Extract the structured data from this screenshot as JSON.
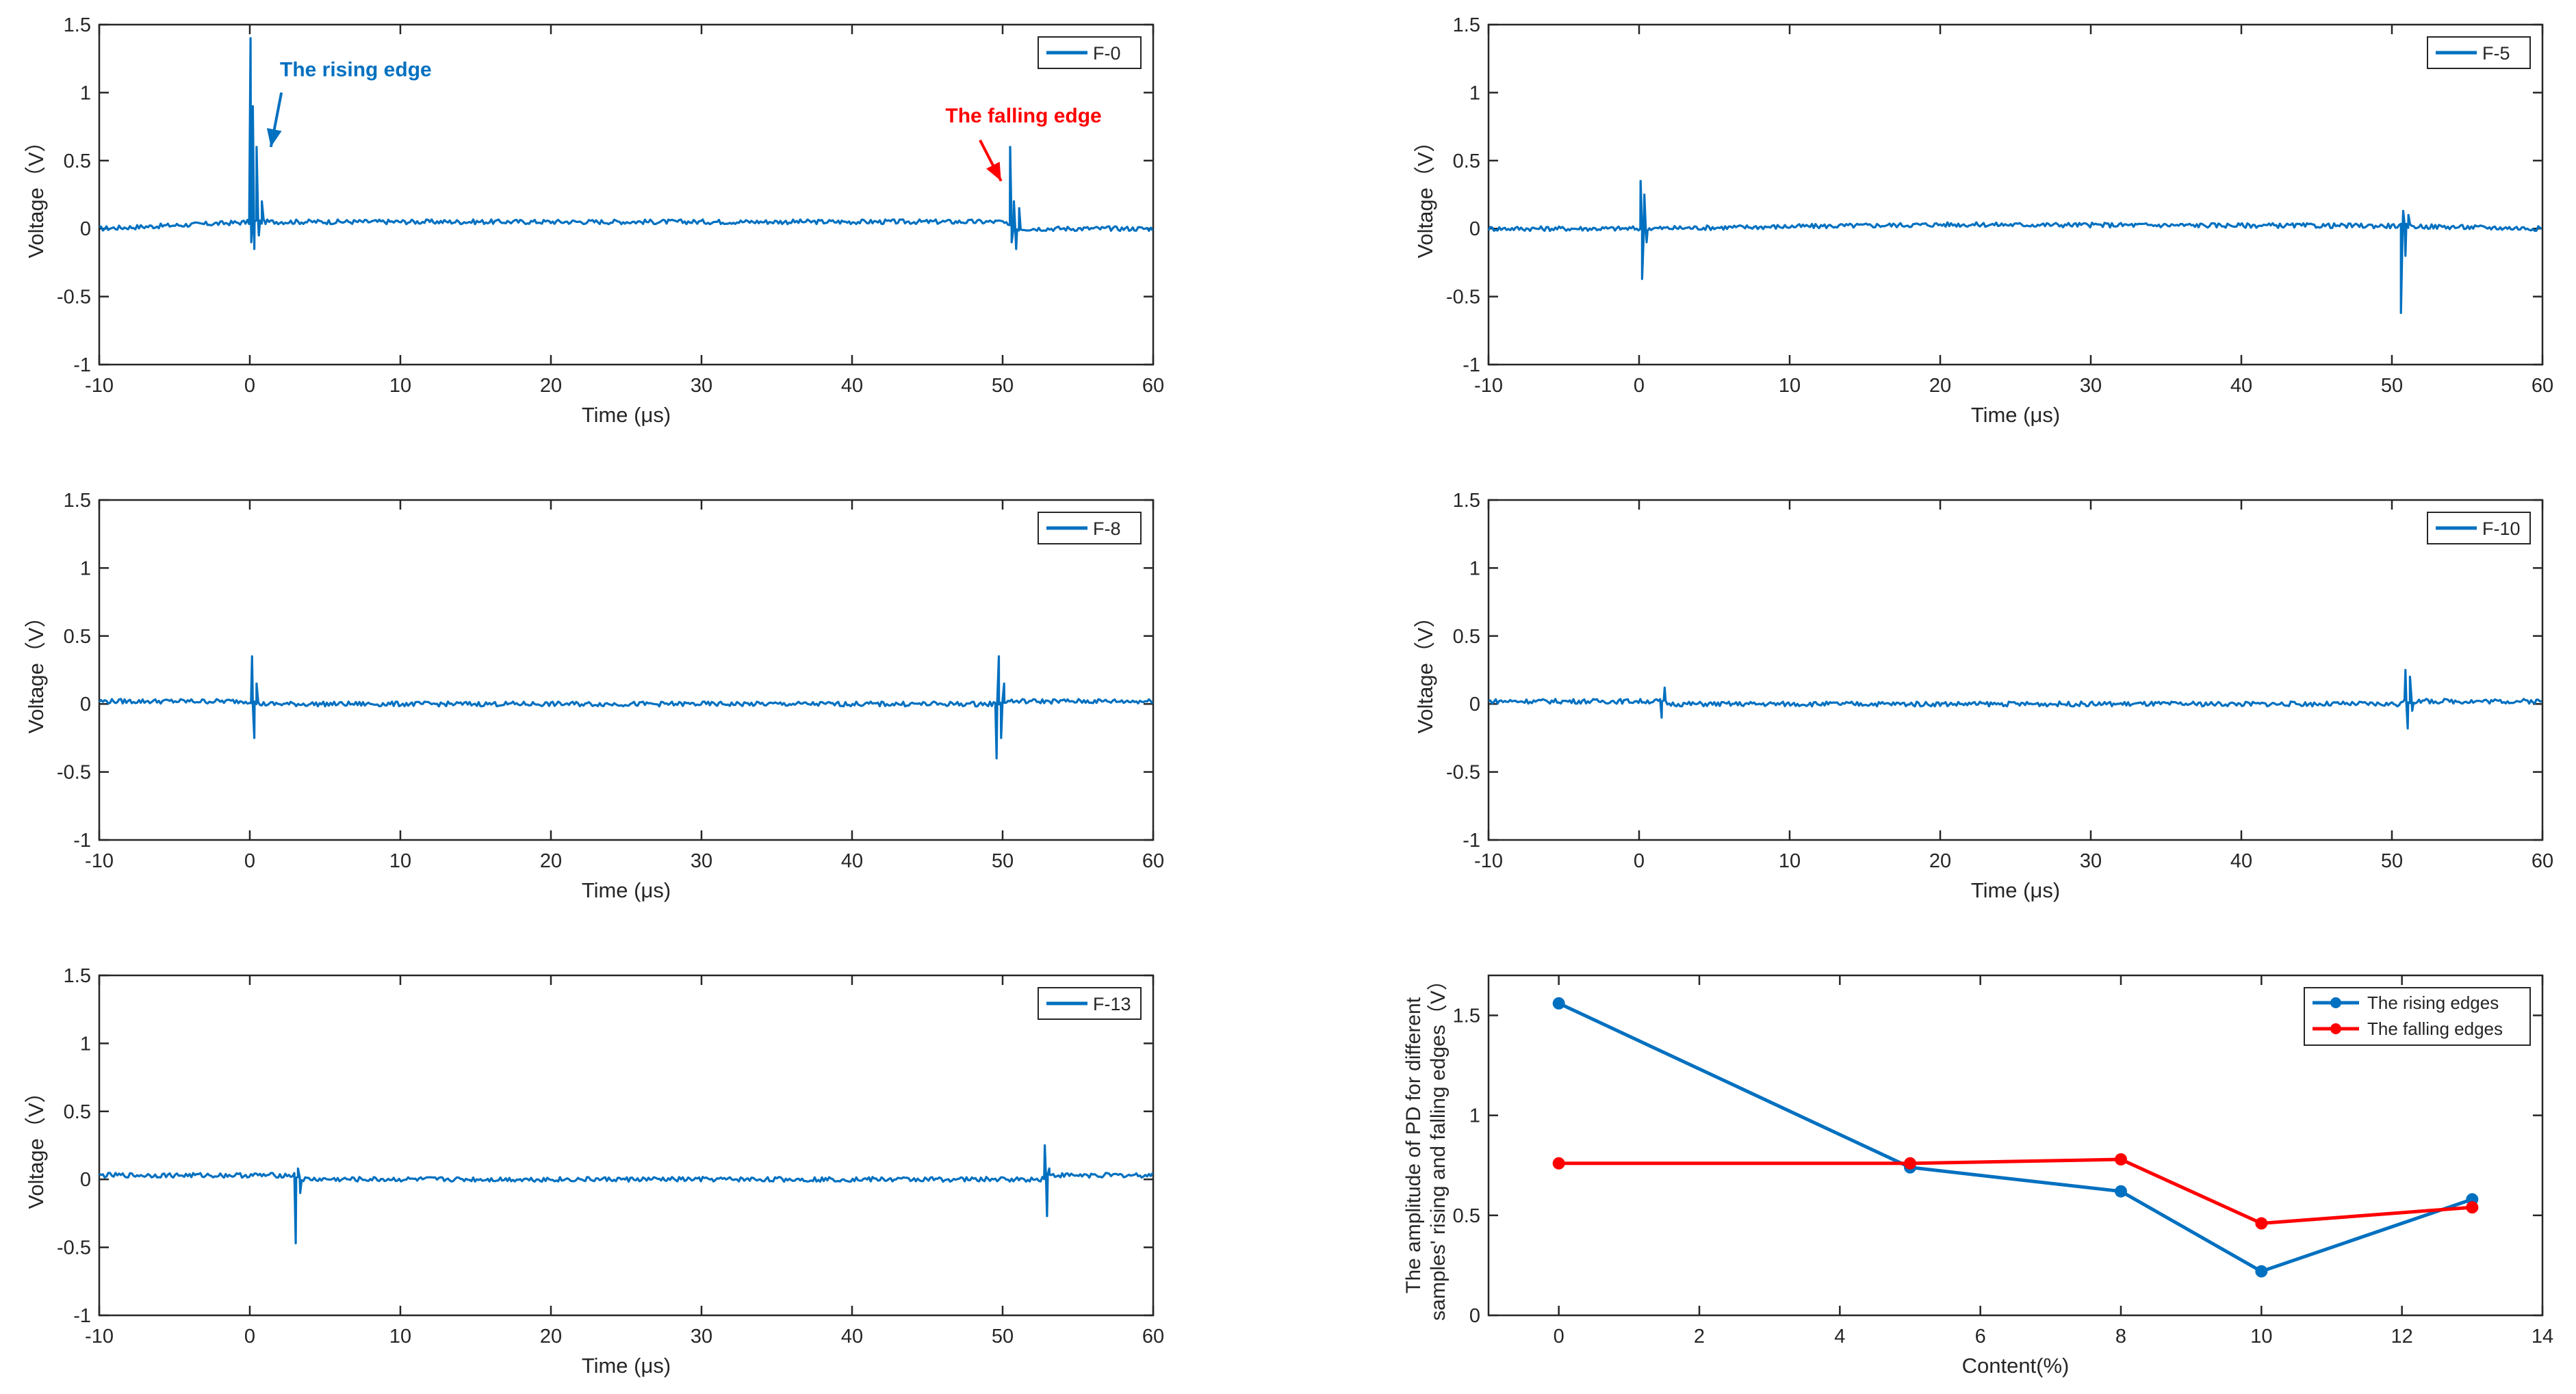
{
  "waveforms": [
    {
      "legend": "F-0",
      "xlabel": "Time (μs)",
      "ylabel": "Voltage（V）",
      "xlim": [
        -10,
        60
      ],
      "ylim": [
        -1,
        1.5
      ],
      "xticks": [
        -10,
        0,
        10,
        20,
        30,
        40,
        50,
        60
      ],
      "yticks": [
        -1,
        -0.5,
        0,
        0.5,
        1,
        1.5
      ],
      "baseline_segments": [
        [
          -10,
          0.0
        ],
        [
          0.5,
          0.05
        ],
        [
          50,
          0.05
        ],
        [
          50.6,
          0.0
        ],
        [
          60,
          0.0
        ]
      ],
      "spikes": [
        [
          0.05,
          1.4
        ],
        [
          0.1,
          -0.1
        ],
        [
          0.2,
          0.9
        ],
        [
          0.3,
          -0.15
        ],
        [
          0.45,
          0.6
        ],
        [
          0.6,
          -0.05
        ],
        [
          0.8,
          0.2
        ],
        [
          1.0,
          0.05
        ],
        [
          50.5,
          0.6
        ],
        [
          50.6,
          -0.1
        ],
        [
          50.75,
          0.2
        ],
        [
          50.9,
          -0.15
        ],
        [
          51.1,
          0.15
        ]
      ],
      "annotations": [
        {
          "text": "The rising edge",
          "color": "#0070c0",
          "x": 2,
          "y": 1.12,
          "arrow_from": [
            2.1,
            1.0
          ],
          "arrow_to": [
            1.4,
            0.6
          ]
        },
        {
          "text": "The falling edge",
          "color": "#ff0000",
          "x": 46.2,
          "y": 0.78,
          "arrow_from": [
            48.5,
            0.65
          ],
          "arrow_to": [
            49.9,
            0.35
          ]
        }
      ]
    },
    {
      "legend": "F-5",
      "xlabel": "Time (μs)",
      "ylabel": "Voltage（V）",
      "xlim": [
        -10,
        60
      ],
      "ylim": [
        -1,
        1.5
      ],
      "xticks": [
        -10,
        0,
        10,
        20,
        30,
        40,
        50,
        60
      ],
      "yticks": [
        -1,
        -0.5,
        0,
        0.5,
        1,
        1.5
      ],
      "baseline_segments": [
        [
          -10,
          0.0
        ],
        [
          0,
          0.0
        ],
        [
          20,
          0.03
        ],
        [
          50,
          0.02
        ],
        [
          60,
          0.0
        ]
      ],
      "spikes": [
        [
          0.1,
          0.35
        ],
        [
          0.2,
          -0.37
        ],
        [
          0.35,
          0.25
        ],
        [
          0.5,
          -0.1
        ],
        [
          50.6,
          -0.62
        ],
        [
          50.75,
          0.13
        ],
        [
          50.9,
          -0.2
        ],
        [
          51.1,
          0.1
        ]
      ],
      "annotations": []
    },
    {
      "legend": "F-8",
      "xlabel": "Time (μs)",
      "ylabel": "Voltage（V）",
      "xlim": [
        -10,
        60
      ],
      "ylim": [
        -1,
        1.5
      ],
      "xticks": [
        -10,
        0,
        10,
        20,
        30,
        40,
        50,
        60
      ],
      "yticks": [
        -1,
        -0.5,
        0,
        0.5,
        1,
        1.5
      ],
      "baseline_segments": [
        [
          -10,
          0.02
        ],
        [
          0,
          0.02
        ],
        [
          0.6,
          0.0
        ],
        [
          49.5,
          0.0
        ],
        [
          50,
          0.02
        ],
        [
          60,
          0.02
        ]
      ],
      "spikes": [
        [
          0.15,
          0.35
        ],
        [
          0.3,
          -0.25
        ],
        [
          0.45,
          0.15
        ],
        [
          49.6,
          -0.4
        ],
        [
          49.75,
          0.35
        ],
        [
          49.9,
          -0.25
        ],
        [
          50.1,
          0.15
        ]
      ],
      "annotations": []
    },
    {
      "legend": "F-10",
      "xlabel": "Time (μs)",
      "ylabel": "Voltage（V）",
      "xlim": [
        -10,
        60
      ],
      "ylim": [
        -1,
        1.5
      ],
      "xticks": [
        -10,
        0,
        10,
        20,
        30,
        40,
        50,
        60
      ],
      "yticks": [
        -1,
        -0.5,
        0,
        0.5,
        1,
        1.5
      ],
      "baseline_segments": [
        [
          -10,
          0.02
        ],
        [
          1.5,
          0.02
        ],
        [
          2,
          0.0
        ],
        [
          50.5,
          0.0
        ],
        [
          51,
          0.02
        ],
        [
          60,
          0.02
        ]
      ],
      "spikes": [
        [
          1.5,
          -0.1
        ],
        [
          1.7,
          0.12
        ],
        [
          50.9,
          0.25
        ],
        [
          51.05,
          -0.18
        ],
        [
          51.2,
          0.2
        ],
        [
          51.35,
          -0.05
        ]
      ],
      "annotations": []
    },
    {
      "legend": "F-13",
      "xlabel": "Time (μs)",
      "ylabel": "Voltage（V）",
      "xlim": [
        -10,
        60
      ],
      "ylim": [
        -1,
        1.5
      ],
      "xticks": [
        -10,
        0,
        10,
        20,
        30,
        40,
        50,
        60
      ],
      "yticks": [
        -1,
        -0.5,
        0,
        0.5,
        1,
        1.5
      ],
      "baseline_segments": [
        [
          -10,
          0.03
        ],
        [
          3,
          0.03
        ],
        [
          3.5,
          0.0
        ],
        [
          52.5,
          0.0
        ],
        [
          53,
          0.03
        ],
        [
          60,
          0.03
        ]
      ],
      "spikes": [
        [
          3.05,
          -0.47
        ],
        [
          3.2,
          0.08
        ],
        [
          3.35,
          -0.1
        ],
        [
          52.8,
          0.25
        ],
        [
          52.95,
          -0.27
        ],
        [
          53.1,
          0.08
        ]
      ],
      "annotations": []
    }
  ],
  "chart_data": {
    "type": "line",
    "xlabel": "Content(%)",
    "ylabel": "The amplitude of PD for different samples' rising and falling edges（V）",
    "xlim": [
      -1,
      14
    ],
    "ylim": [
      0,
      1.7
    ],
    "xticks": [
      0,
      2,
      4,
      6,
      8,
      10,
      12,
      14
    ],
    "yticks": [
      0,
      0.5,
      1,
      1.5
    ],
    "x": [
      0,
      5,
      8,
      10,
      13
    ],
    "series": [
      {
        "name": "The rising edges",
        "values": [
          1.56,
          0.74,
          0.62,
          0.22,
          0.58
        ],
        "color": "#0070c0"
      },
      {
        "name": "The falling edges",
        "values": [
          0.76,
          0.76,
          0.78,
          0.46,
          0.54
        ],
        "color": "#ff0000"
      }
    ],
    "legend_position": "top-right",
    "grid": false
  },
  "colors": {
    "waveform": "#0070c0",
    "rising": "#0070c0",
    "falling": "#ff0000",
    "axis": "#262626"
  }
}
